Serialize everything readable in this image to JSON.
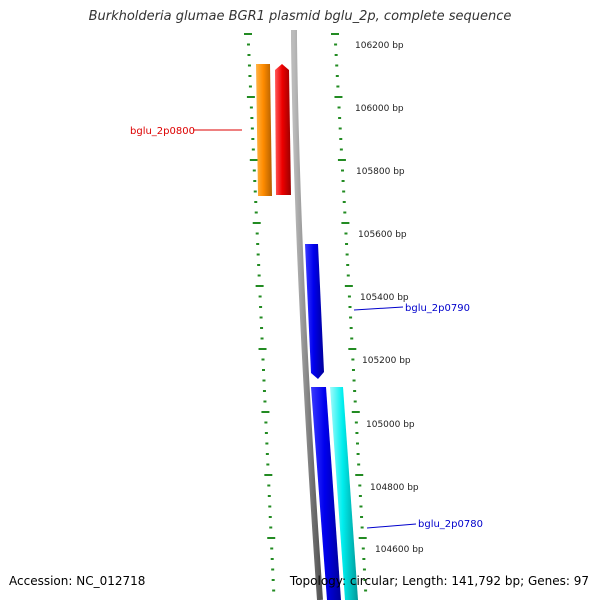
{
  "title": "Burkholderia glumae BGR1 plasmid bglu_2p, complete sequence",
  "footer": {
    "accession": "Accession: NC_012718",
    "topology": "Topology: circular; Length: 141,792 bp; Genes: 97"
  },
  "bp_labels": [
    "106200 bp",
    "106000 bp",
    "105800 bp",
    "105600 bp",
    "105400 bp",
    "105200 bp",
    "105000 bp",
    "104800 bp",
    "104600 bp"
  ],
  "genes": [
    {
      "label": "bglu_2p0800",
      "color": "#dd0000"
    },
    {
      "label": "bglu_2p0790",
      "color": "#0000cc"
    },
    {
      "label": "bglu_2p0780",
      "color": "#0000cc"
    }
  ],
  "colors": {
    "orange": "#ff8c00",
    "red": "#ee0000",
    "blue": "#0000ee",
    "cyan": "#00eeee",
    "backbone": "#888888",
    "ticks": "#228b22"
  }
}
